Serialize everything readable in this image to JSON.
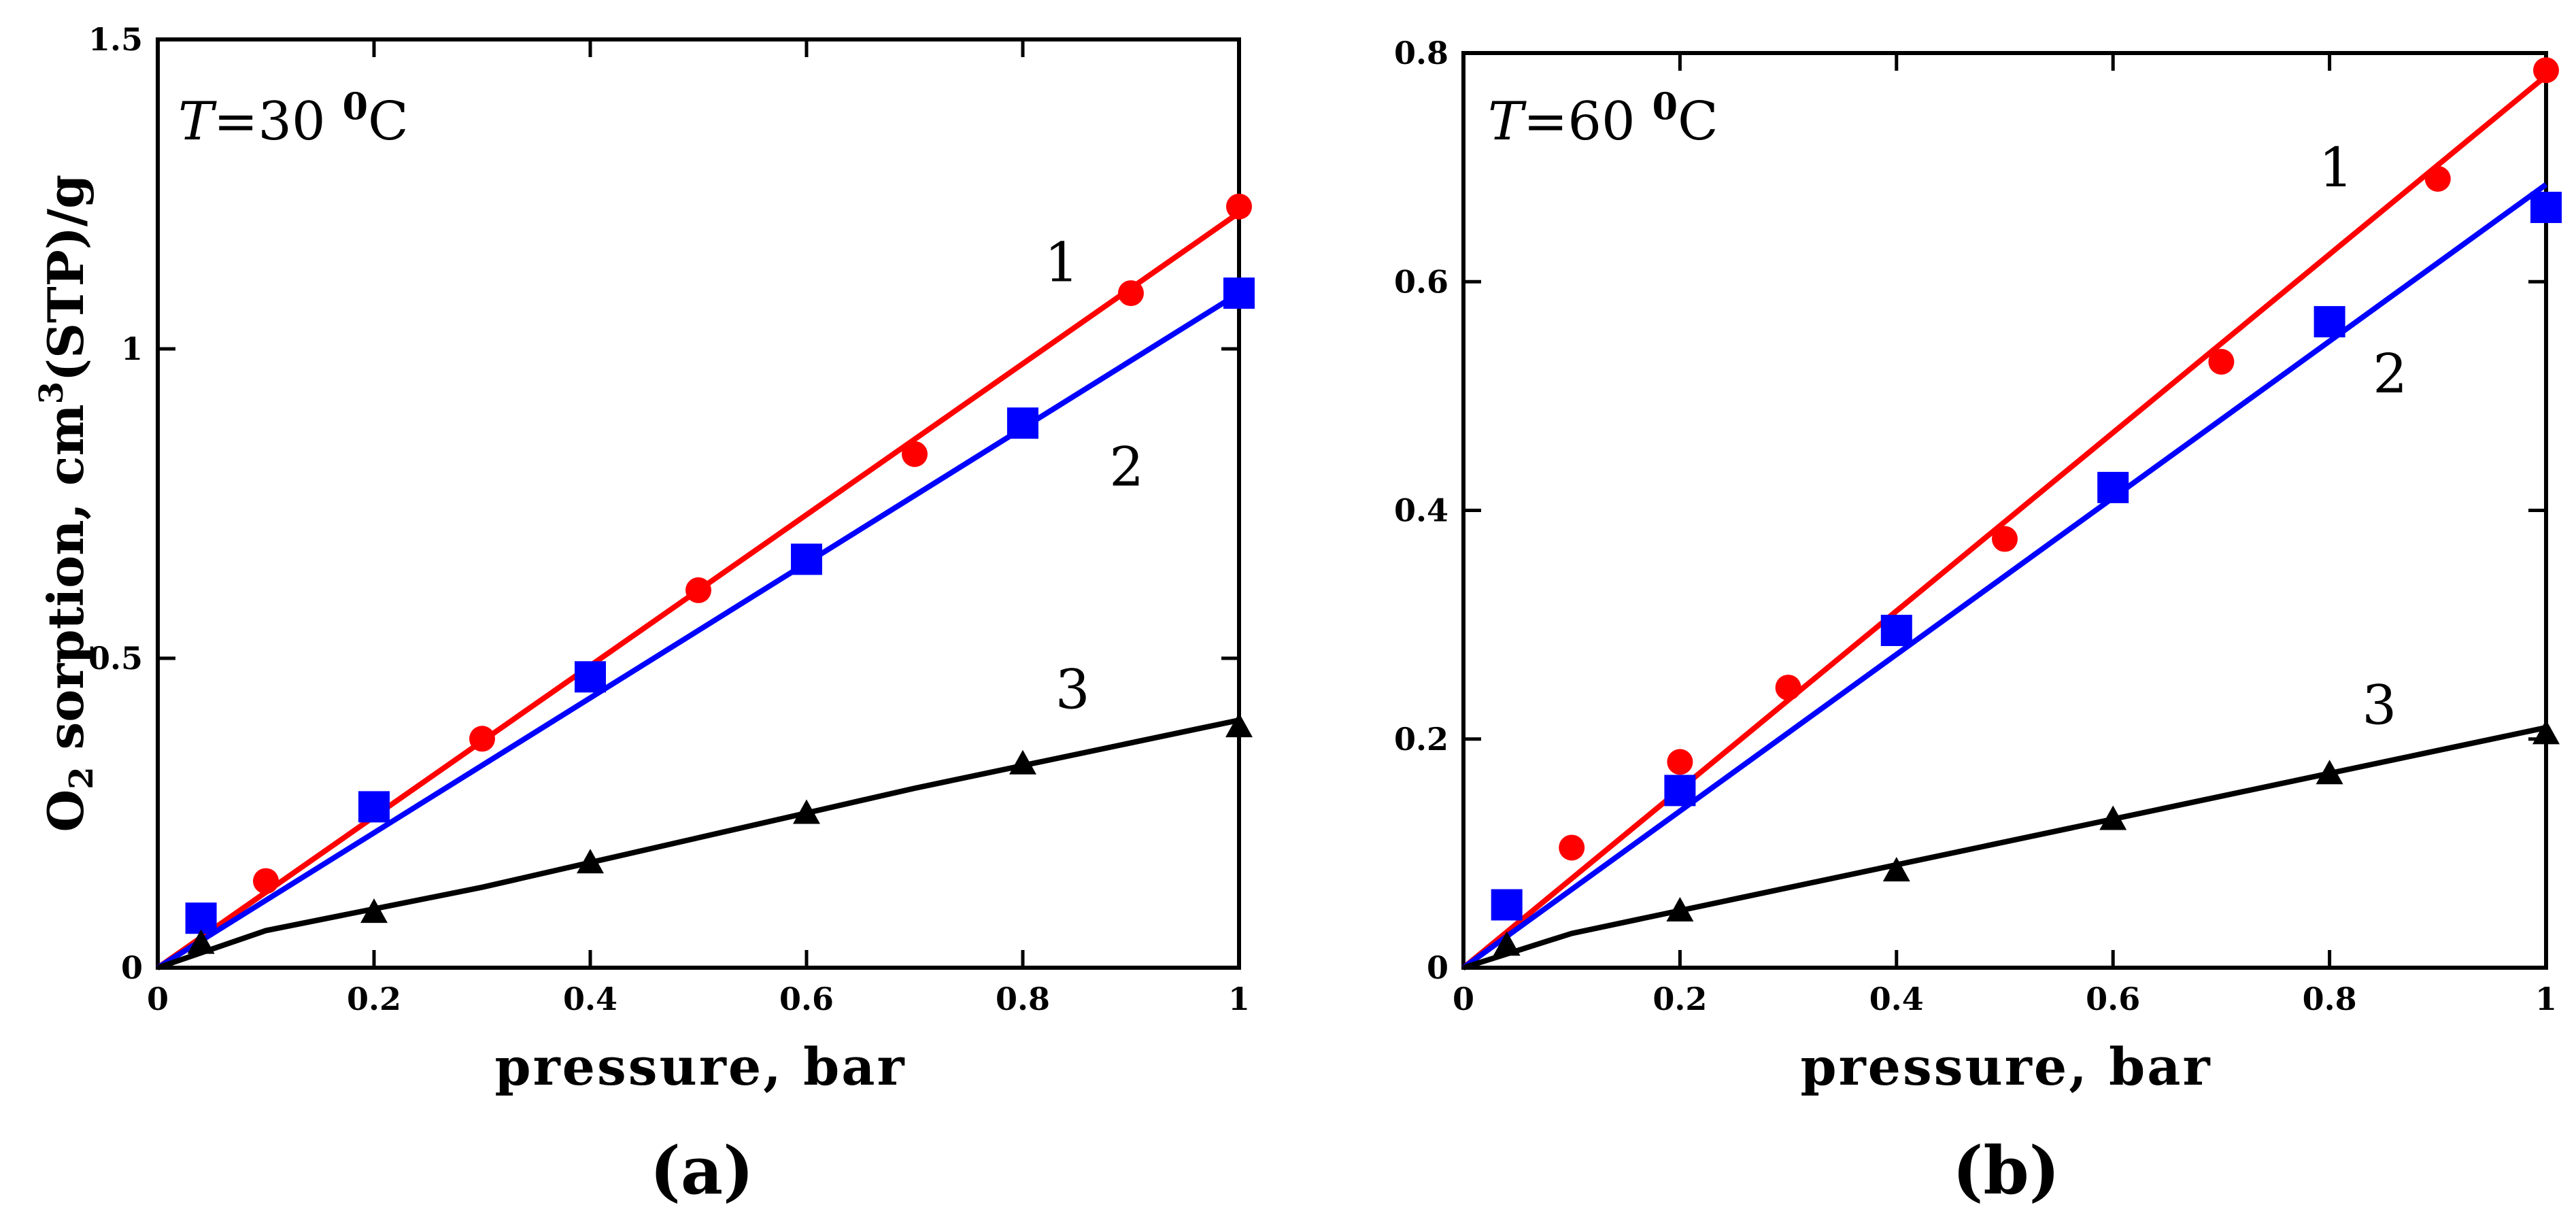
{
  "chart_data": [
    {
      "type": "scatter",
      "panel": "(a)",
      "annotation": {
        "italic_symbol": "T",
        "text": "=30 ",
        "sup": "0",
        "unit": "C"
      },
      "xlabel": "pressure, bar",
      "ylabel": {
        "pre": "O",
        "sub": "2",
        "mid": " sorption, cm",
        "sup": "3",
        "post": "(STP)/g"
      },
      "xlim": [
        0,
        1
      ],
      "ylim": [
        0,
        1.5
      ],
      "xticks": [
        0,
        0.2,
        0.4,
        0.6,
        0.8,
        1
      ],
      "xtick_labels": [
        "0",
        "0.2",
        "0.4",
        "0.6",
        "0.8",
        "1"
      ],
      "yticks": [
        0,
        0.5,
        1,
        1.5
      ],
      "ytick_labels": [
        "0",
        "0.5",
        "1",
        "1.5"
      ],
      "series": [
        {
          "name": "1",
          "color": "#ff0000",
          "marker": "circle",
          "x": [
            0.1,
            0.3,
            0.5,
            0.7,
            0.9,
            1.0
          ],
          "y": [
            0.14,
            0.37,
            0.61,
            0.83,
            1.09,
            1.23
          ],
          "fit": [
            [
              0,
              0.0
            ],
            [
              1,
              1.22
            ]
          ],
          "label_at": [
            0.82,
            1.14
          ]
        },
        {
          "name": "2",
          "color": "#0000ff",
          "marker": "square",
          "x": [
            0.04,
            0.2,
            0.4,
            0.6,
            0.8,
            1.0
          ],
          "y": [
            0.08,
            0.26,
            0.47,
            0.66,
            0.88,
            1.09
          ],
          "fit": [
            [
              0,
              0.0
            ],
            [
              1,
              1.09
            ]
          ],
          "label_at": [
            0.88,
            0.81
          ]
        },
        {
          "name": "3",
          "color": "#000000",
          "marker": "triangle",
          "x": [
            0.04,
            0.2,
            0.4,
            0.6,
            0.8,
            1.0
          ],
          "y": [
            0.04,
            0.09,
            0.17,
            0.25,
            0.33,
            0.39
          ],
          "fit": [
            [
              0,
              0.0
            ],
            [
              0.1,
              0.06
            ],
            [
              0.3,
              0.13
            ],
            [
              0.5,
              0.21
            ],
            [
              0.7,
              0.29
            ],
            [
              1,
              0.4
            ]
          ],
          "label_at": [
            0.83,
            0.45
          ]
        }
      ]
    },
    {
      "type": "scatter",
      "panel": "(b)",
      "annotation": {
        "italic_symbol": "T",
        "text": "=60 ",
        "sup": "0",
        "unit": "C"
      },
      "xlabel": "pressure, bar",
      "xlim": [
        0,
        1
      ],
      "ylim": [
        0,
        0.8
      ],
      "xticks": [
        0,
        0.2,
        0.4,
        0.6,
        0.8,
        1
      ],
      "xtick_labels": [
        "0",
        "0.2",
        "0.4",
        "0.6",
        "0.8",
        "1"
      ],
      "yticks": [
        0,
        0.2,
        0.4,
        0.6,
        0.8
      ],
      "ytick_labels": [
        "0",
        "0.2",
        "0.4",
        "0.6",
        "0.8"
      ],
      "series": [
        {
          "name": "1",
          "color": "#ff0000",
          "marker": "circle",
          "x": [
            0.1,
            0.2,
            0.3,
            0.5,
            0.7,
            0.9,
            1.0
          ],
          "y": [
            0.105,
            0.18,
            0.245,
            0.375,
            0.53,
            0.69,
            0.785
          ],
          "fit": [
            [
              0,
              0.0
            ],
            [
              1,
              0.78
            ]
          ],
          "label_at": [
            0.79,
            0.7
          ]
        },
        {
          "name": "2",
          "color": "#0000ff",
          "marker": "square",
          "x": [
            0.04,
            0.2,
            0.4,
            0.6,
            0.8,
            1.0
          ],
          "y": [
            0.055,
            0.155,
            0.295,
            0.42,
            0.565,
            0.665
          ],
          "fit": [
            [
              0,
              0.0
            ],
            [
              1,
              0.685
            ]
          ],
          "label_at": [
            0.84,
            0.52
          ]
        },
        {
          "name": "3",
          "color": "#000000",
          "marker": "triangle",
          "x": [
            0.04,
            0.2,
            0.4,
            0.6,
            0.8,
            1.0
          ],
          "y": [
            0.02,
            0.05,
            0.085,
            0.13,
            0.17,
            0.205
          ],
          "fit": [
            [
              0,
              0.0
            ],
            [
              0.1,
              0.03
            ],
            [
              0.3,
              0.07
            ],
            [
              0.5,
              0.11
            ],
            [
              0.7,
              0.15
            ],
            [
              1,
              0.21
            ]
          ],
          "label_at": [
            0.83,
            0.23
          ]
        }
      ]
    }
  ]
}
